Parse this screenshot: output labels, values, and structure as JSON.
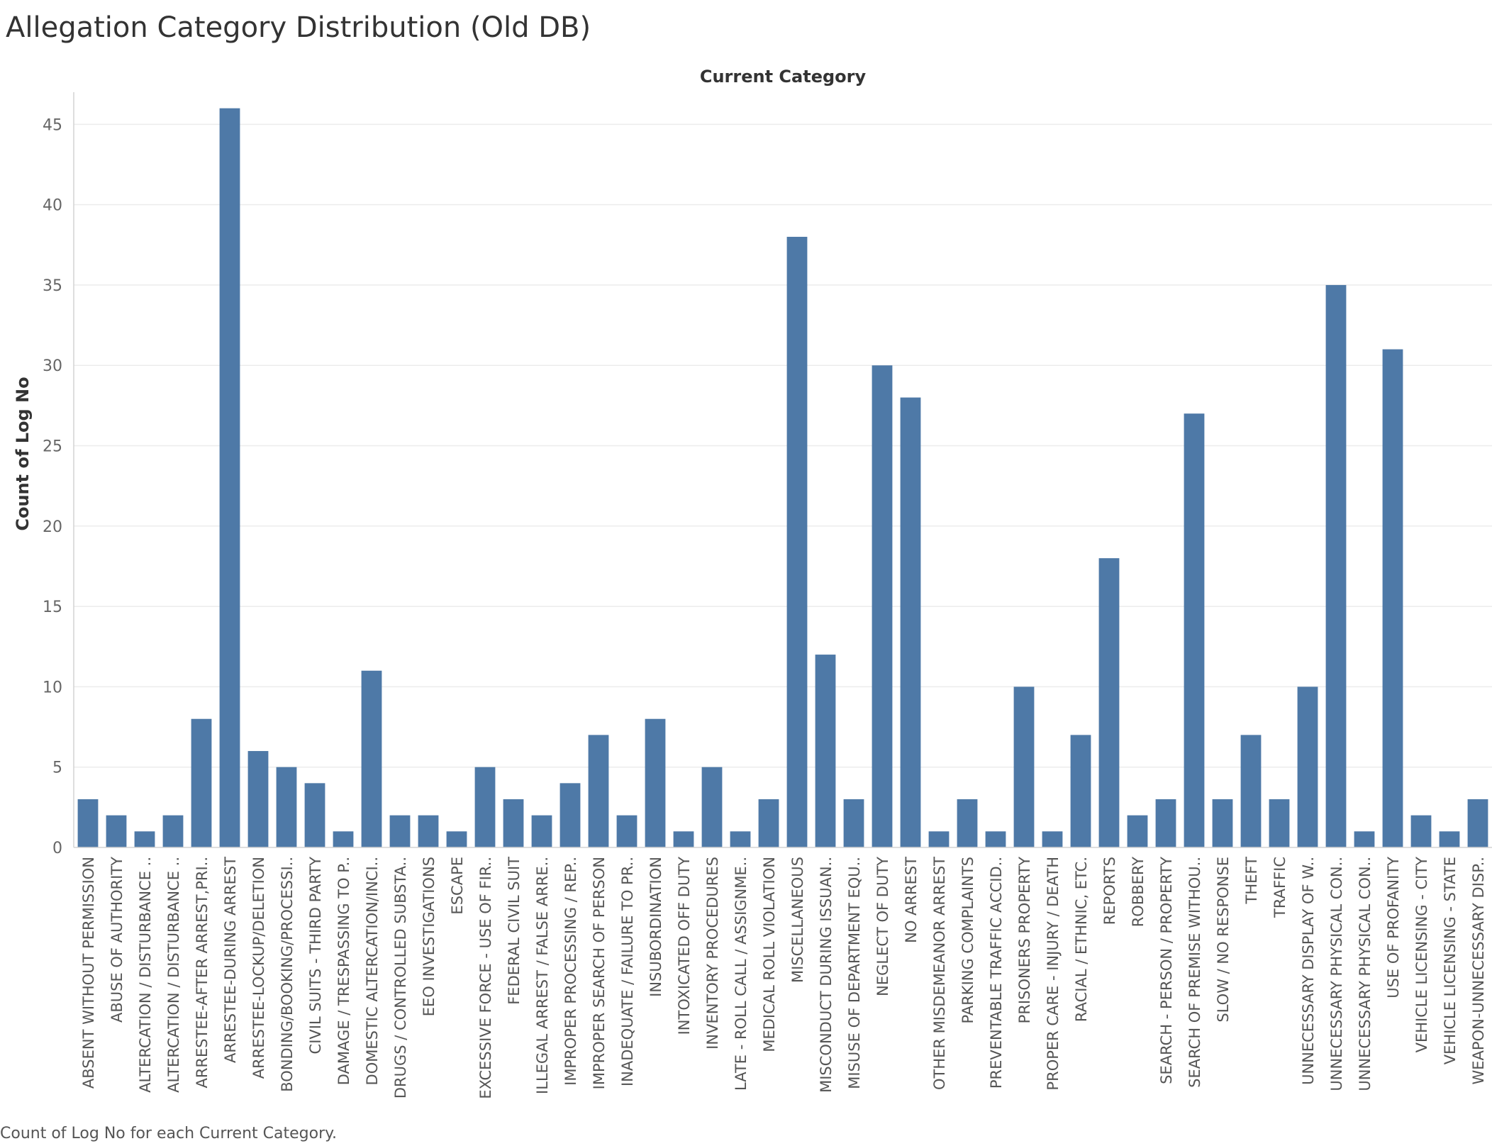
{
  "title": "Allegation Category Distribution (Old DB)",
  "caption": "Count of Log No for each Current Category.",
  "colors": {
    "bar": "#4e79a7",
    "grid": "#ececec",
    "axis": "#d4d4d4"
  },
  "chart_data": {
    "type": "bar",
    "title": "Allegation Category Distribution (Old DB)",
    "xlabel": "Current Category",
    "ylabel": "Count of Log No",
    "ylim": [
      0,
      47
    ],
    "yticks": [
      0,
      5,
      10,
      15,
      20,
      25,
      30,
      35,
      40,
      45
    ],
    "grid": true,
    "categories": [
      "ABSENT WITHOUT PERMISSION",
      "ABUSE OF AUTHORITY",
      "ALTERCATION / DISTURBANCE ..",
      "ALTERCATION / DISTURBANCE ..",
      "ARRESTEE-AFTER ARREST,PRI..",
      "ARRESTEE-DURING ARREST",
      "ARRESTEE-LOCKUP/DELETION",
      "BONDING/BOOKING/PROCESSI..",
      "CIVIL SUITS - THIRD PARTY",
      "DAMAGE / TRESPASSING TO P..",
      "DOMESTIC ALTERCATION/INCI..",
      "DRUGS / CONTROLLED SUBSTA..",
      "EEO INVESTIGATIONS",
      "ESCAPE",
      "EXCESSIVE FORCE - USE OF FIR..",
      "FEDERAL CIVIL SUIT",
      "ILLEGAL ARREST / FALSE ARRE..",
      "IMPROPER PROCESSING / REP..",
      "IMPROPER SEARCH OF PERSON",
      "INADEQUATE / FAILURE TO PR..",
      "INSUBORDINATION",
      "INTOXICATED OFF DUTY",
      "INVENTORY PROCEDURES",
      "LATE - ROLL CALL / ASSIGNME..",
      "MEDICAL ROLL VIOLATION",
      "MISCELLANEOUS",
      "MISCONDUCT DURING ISSUAN..",
      "MISUSE OF DEPARTMENT EQU..",
      "NEGLECT OF DUTY",
      "NO ARREST",
      "OTHER MISDEMEANOR ARREST",
      "PARKING COMPLAINTS",
      "PREVENTABLE TRAFFIC ACCID..",
      "PRISONERS PROPERTY",
      "PROPER CARE - INJURY / DEATH",
      "RACIAL / ETHNIC, ETC.",
      "REPORTS",
      "ROBBERY",
      "SEARCH - PERSON / PROPERTY",
      "SEARCH OF PREMISE WITHOU..",
      "SLOW / NO RESPONSE",
      "THEFT",
      "TRAFFIC",
      "UNNECESSARY DISPLAY OF W..",
      "UNNECESSARY PHYSICAL CON..",
      "UNNECESSARY PHYSICAL CON..",
      "USE OF PROFANITY",
      "VEHICLE LICENSING - CITY",
      "VEHICLE LICENSING - STATE",
      "WEAPON-UNNECESSARY DISP.."
    ],
    "values": [
      3,
      2,
      1,
      2,
      8,
      46,
      6,
      5,
      4,
      1,
      11,
      2,
      2,
      1,
      5,
      3,
      2,
      4,
      7,
      2,
      8,
      1,
      5,
      1,
      3,
      38,
      12,
      3,
      30,
      28,
      1,
      3,
      1,
      10,
      1,
      7,
      18,
      2,
      3,
      27,
      3,
      7,
      3,
      10,
      35,
      1,
      31,
      2,
      1,
      3
    ]
  }
}
